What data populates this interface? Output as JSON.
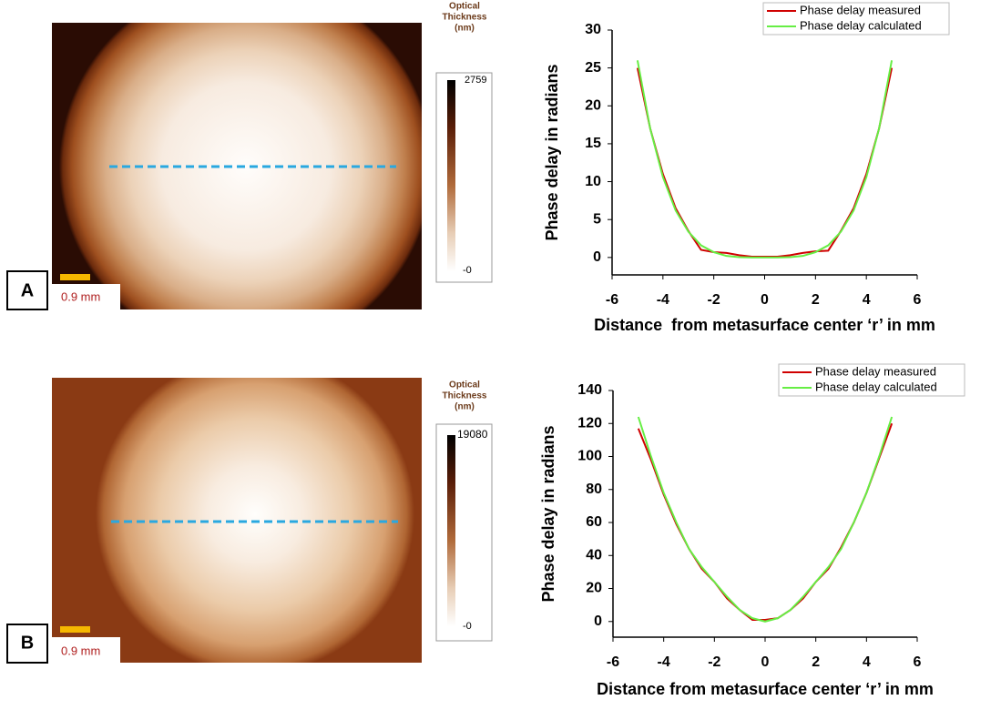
{
  "chart_data": [
    {
      "type": "line",
      "x_label": "Distance  from metasurface center ‘r’ in mm",
      "y_label": "Phase delay in radians",
      "x": [
        -5,
        -4.5,
        -4,
        -3.5,
        -3,
        -2.5,
        -2,
        -1.5,
        -1,
        -0.5,
        0,
        0.5,
        1,
        1.5,
        2,
        2.5,
        3,
        3.5,
        4,
        4.5,
        5
      ],
      "series": [
        {
          "name": "Phase delay measured",
          "color": "#d00000",
          "values": [
            25,
            17,
            11,
            6.5,
            3.5,
            1,
            0.7,
            0.6,
            0.3,
            0.1,
            0.1,
            0.1,
            0.3,
            0.6,
            0.8,
            0.9,
            3.5,
            6.5,
            11,
            17,
            25
          ]
        },
        {
          "name": "Phase delay calculated",
          "color": "#66ee44",
          "values": [
            26,
            17,
            10.6,
            6.2,
            3.4,
            1.6,
            0.7,
            0.2,
            0.04,
            0,
            0,
            0,
            0.04,
            0.2,
            0.7,
            1.6,
            3.4,
            6.2,
            10.6,
            17,
            26
          ]
        }
      ],
      "xlim": [
        -6,
        6
      ],
      "xticks": [
        -6,
        -4,
        -2,
        0,
        2,
        4,
        6
      ],
      "ylim": [
        -2.3,
        30
      ],
      "yticks": [
        0,
        5,
        10,
        15,
        20,
        25,
        30
      ]
    },
    {
      "type": "line",
      "x_label": "Distance from metasurface center ‘r’ in mm",
      "y_label": "Phase delay in radians",
      "x": [
        -5,
        -4.5,
        -4,
        -3.5,
        -3,
        -2.5,
        -2,
        -1.5,
        -1,
        -0.5,
        0,
        0.5,
        1,
        1.5,
        2,
        2.5,
        3,
        3.5,
        4,
        4.5,
        5
      ],
      "series": [
        {
          "name": "Phase delay measured",
          "color": "#d00000",
          "values": [
            117,
            98,
            77,
            59,
            44,
            32,
            24,
            14,
            7,
            1,
            1,
            2,
            7,
            14,
            24,
            32,
            45,
            60,
            78,
            99,
            120
          ]
        },
        {
          "name": "Phase delay calculated",
          "color": "#66ee44",
          "values": [
            124,
            100,
            78,
            60,
            44,
            33,
            24,
            15,
            7,
            2,
            0,
            2,
            7,
            15,
            24,
            33,
            44,
            60,
            78,
            100,
            124
          ]
        }
      ],
      "xlim": [
        -6,
        6
      ],
      "xticks": [
        -6,
        -4,
        -2,
        0,
        2,
        4,
        6
      ],
      "ylim": [
        -9.5,
        140
      ],
      "yticks": [
        0,
        20,
        40,
        60,
        80,
        100,
        120,
        140
      ]
    }
  ],
  "panels": [
    {
      "label": "A",
      "scale_bar": "0.9 mm",
      "colorbar_title": [
        "Optical",
        "Thickness",
        "(nm)"
      ],
      "colorbar_max": "2759",
      "colorbar_min": "-0"
    },
    {
      "label": "B",
      "scale_bar": "0.9 mm",
      "colorbar_title": [
        "Optical",
        "Thickness",
        "(nm)"
      ],
      "colorbar_max": "19080",
      "colorbar_min": "-0"
    }
  ]
}
